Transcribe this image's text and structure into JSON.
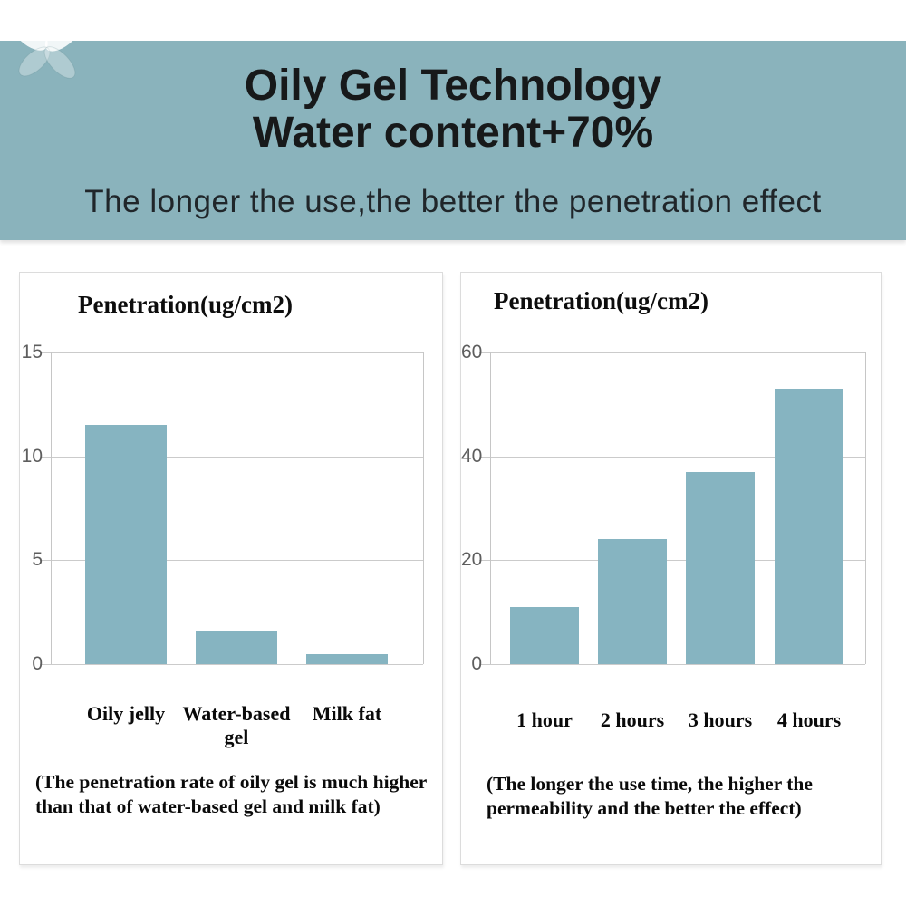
{
  "banner": {
    "title_line1": "Oily Gel Technology",
    "title_line2": "Water content+70%",
    "subtitle": "The longer the use,the better the penetration effect",
    "bg_color": "#8ab3bc"
  },
  "watermark": {
    "icon": "flower-petals",
    "color": "#ffffff"
  },
  "chart_data": [
    {
      "type": "bar",
      "title": "Penetration(ug/cm2)",
      "categories": [
        "Oily jelly",
        "Water-based gel",
        "Milk fat"
      ],
      "values": [
        11.5,
        1.6,
        0.5
      ],
      "yticks": [
        0,
        5,
        10,
        15
      ],
      "ylim": [
        0,
        15
      ],
      "xlabel": "",
      "ylabel": "Penetration (ug/cm2)",
      "grid": true,
      "legend": false,
      "bar_color": "#86b4c1",
      "caption": "(The penetration rate of oily gel is much higher than that of water-based gel and milk fat)"
    },
    {
      "type": "bar",
      "title": "Penetration(ug/cm2)",
      "categories": [
        "1 hour",
        "2 hours",
        "3 hours",
        "4 hours"
      ],
      "values": [
        11,
        24,
        37,
        53
      ],
      "yticks": [
        0,
        20,
        40,
        60
      ],
      "ylim": [
        0,
        60
      ],
      "xlabel": "",
      "ylabel": "Penetration (ug/cm2)",
      "grid": true,
      "legend": false,
      "bar_color": "#86b4c1",
      "caption": "(The longer the use time, the higher the permeability and the better the effect)"
    }
  ]
}
